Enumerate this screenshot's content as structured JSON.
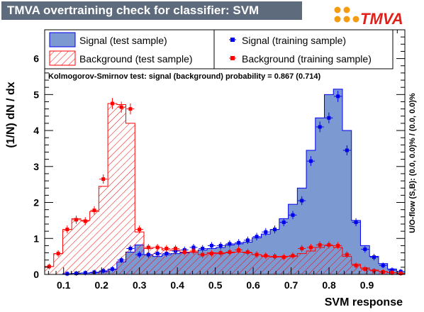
{
  "header": {
    "title": "TMVA overtraining check for classifier: SVM"
  },
  "logo": {
    "text": "TMVA",
    "colors": {
      "dots": "#f39c12",
      "text": "#e0201b",
      "accent": "#2a5db0"
    }
  },
  "colors": {
    "signal_fill": "#7d99d1",
    "signal_line": "#0000ee",
    "background_line": "#ff0000",
    "frame": "#000000"
  },
  "chart_data": {
    "type": "histogram",
    "xlabel": "SVM response",
    "ylabel": "(1/N) dN / dx",
    "right_label": "U/O-flow (S,B): (0.0, 0.0)% / (0.0, 0.0)%",
    "ks_text": "Kolmogorov-Smirnov test: signal (background) probability = 0.867 (0.714)",
    "xlim": [
      0.05,
      1.0
    ],
    "ylim": [
      0,
      6.8
    ],
    "x_ticks": [
      "0.1",
      "0.2",
      "0.3",
      "0.4",
      "0.5",
      "0.6",
      "0.7",
      "0.8",
      "0.9"
    ],
    "y_ticks": [
      "0",
      "1",
      "2",
      "3",
      "4",
      "5",
      "6"
    ],
    "legend": {
      "signal_test": "Signal (test sample)",
      "background_test": "Background (test sample)",
      "signal_train": "Signal (training sample)",
      "background_train": "Background (training sample)"
    },
    "bin_edges": [
      0.05,
      0.0738,
      0.0976,
      0.1214,
      0.1452,
      0.169,
      0.1928,
      0.2166,
      0.2404,
      0.2642,
      0.288,
      0.3118,
      0.3356,
      0.3594,
      0.3832,
      0.407,
      0.4308,
      0.4546,
      0.4784,
      0.5022,
      0.526,
      0.5498,
      0.5736,
      0.5974,
      0.6212,
      0.645,
      0.6688,
      0.6926,
      0.7164,
      0.7402,
      0.764,
      0.7878,
      0.8116,
      0.8354,
      0.8592,
      0.883,
      0.9068,
      0.9306,
      0.9544,
      0.9782,
      1.0
    ],
    "series": [
      {
        "name": "Signal (test sample)",
        "values": [
          0.0,
          0.0,
          0.02,
          0.03,
          0.04,
          0.05,
          0.08,
          0.14,
          0.35,
          0.62,
          0.82,
          0.55,
          0.5,
          0.55,
          0.58,
          0.6,
          0.62,
          0.68,
          0.72,
          0.75,
          0.82,
          0.85,
          0.9,
          1.02,
          1.12,
          1.25,
          1.55,
          1.95,
          2.4,
          3.45,
          4.35,
          5.0,
          5.15,
          4.0,
          1.5,
          0.8,
          0.5,
          0.3,
          0.15,
          0.08
        ]
      },
      {
        "name": "Background (test sample)",
        "values": [
          0.22,
          0.58,
          1.25,
          1.55,
          1.5,
          1.75,
          2.45,
          4.75,
          4.72,
          4.2,
          1.18,
          0.72,
          0.75,
          0.68,
          0.68,
          0.62,
          0.62,
          0.55,
          0.6,
          0.58,
          0.6,
          0.62,
          0.6,
          0.55,
          0.5,
          0.48,
          0.5,
          0.5,
          0.58,
          0.65,
          0.75,
          0.8,
          0.75,
          0.5,
          0.28,
          0.18,
          0.12,
          0.08,
          0.05,
          0.02
        ]
      },
      {
        "name": "Signal (training sample)",
        "values": [
          0.0,
          0.0,
          0.02,
          0.03,
          0.04,
          0.06,
          0.1,
          0.15,
          0.4,
          0.72,
          0.55,
          0.55,
          0.58,
          0.58,
          0.65,
          0.68,
          0.75,
          0.72,
          0.8,
          0.8,
          0.85,
          0.88,
          0.95,
          1.05,
          1.18,
          1.25,
          1.45,
          1.65,
          2.05,
          3.15,
          4.1,
          4.35,
          4.95,
          3.45,
          1.45,
          0.7,
          0.48,
          0.25,
          0.12,
          0.08
        ]
      },
      {
        "name": "Background (training sample)",
        "values": [
          0.22,
          0.58,
          1.25,
          1.52,
          1.48,
          1.78,
          2.65,
          4.75,
          4.65,
          4.6,
          1.25,
          0.75,
          0.75,
          0.72,
          0.72,
          0.62,
          0.65,
          0.55,
          0.58,
          0.6,
          0.62,
          0.68,
          0.62,
          0.55,
          0.52,
          0.5,
          0.48,
          0.52,
          0.72,
          0.75,
          0.82,
          0.82,
          0.8,
          0.55,
          0.25,
          0.15,
          0.1,
          0.07,
          0.05,
          0.03
        ]
      }
    ]
  }
}
